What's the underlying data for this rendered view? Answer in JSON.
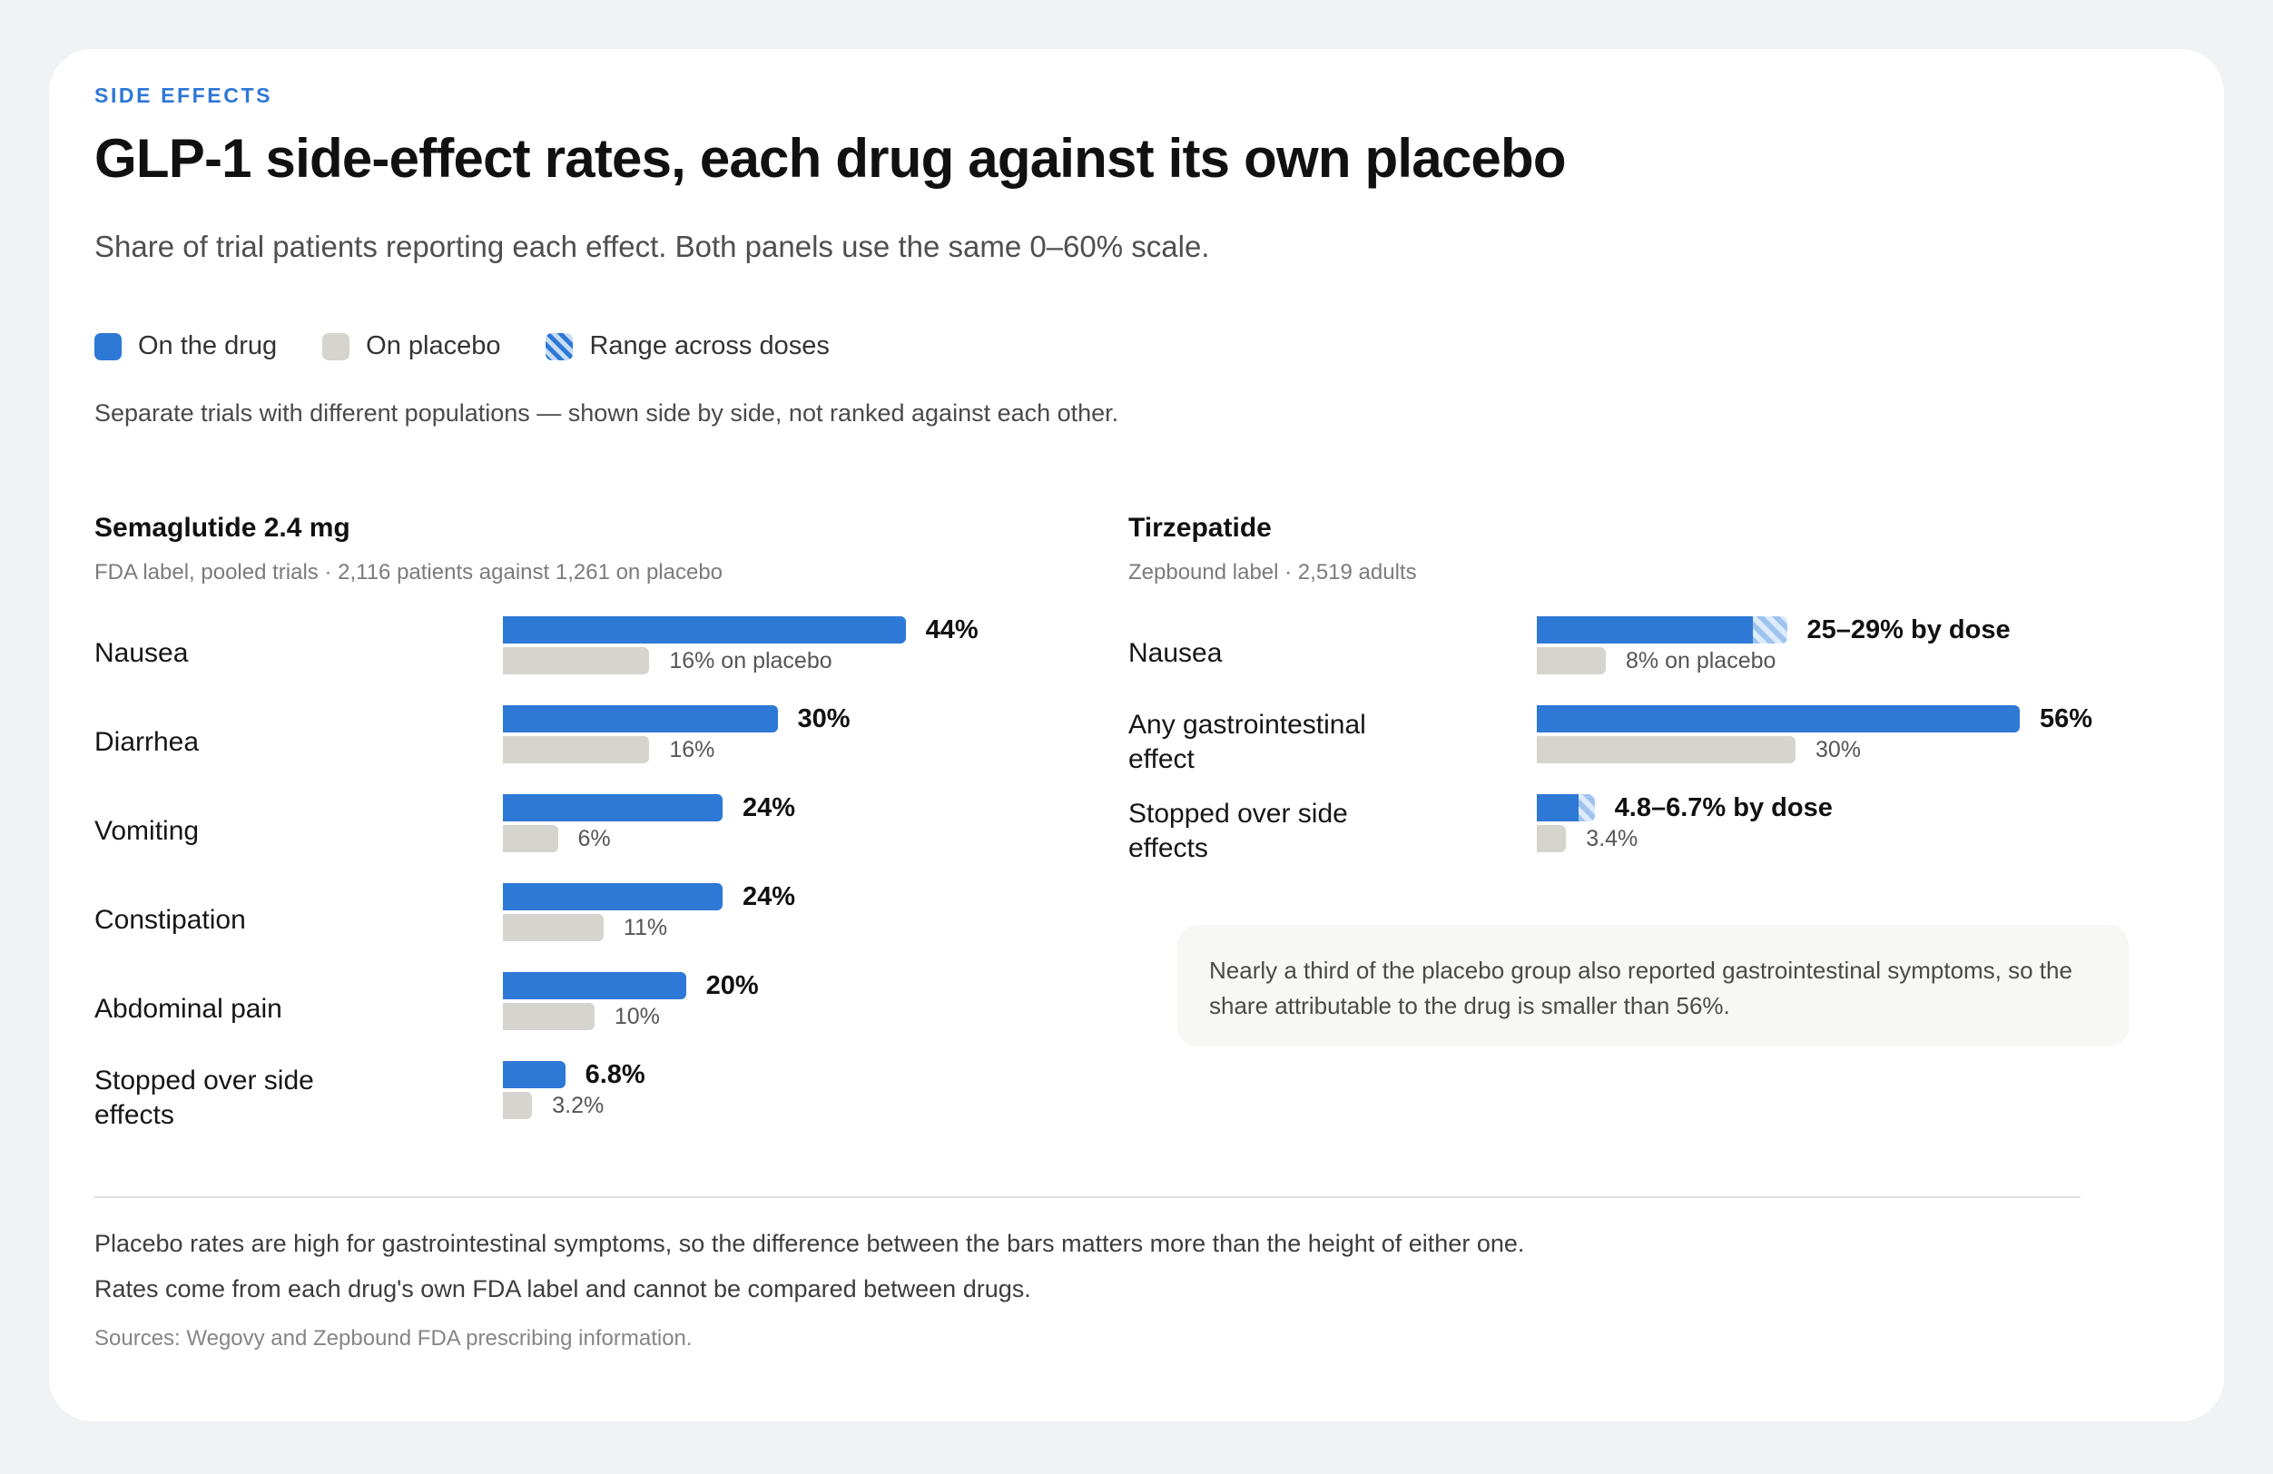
{
  "eyebrow": "SIDE EFFECTS",
  "title": "GLP-1 side-effect rates, each drug against its own placebo",
  "subtitle": "Share of trial patients reporting each effect. Both panels use the same 0–60% scale.",
  "legend": {
    "drug": "On the drug",
    "placebo": "On placebo",
    "range": "Range across doses"
  },
  "note": "Separate trials with different populations — shown side by side, not ranked against each other.",
  "colors": {
    "drug": "#2e78d6",
    "placebo": "#d6d4ce",
    "accent": "#2e78d6"
  },
  "chart_data": [
    {
      "type": "bar",
      "title": "Semaglutide 2.4 mg",
      "subtitle": "FDA label, pooled trials · 2,116 patients against 1,261 on placebo",
      "xlim": [
        0,
        60
      ],
      "unit": "%",
      "categories": [
        "Nausea",
        "Diarrhea",
        "Vomiting",
        "Constipation",
        "Abdominal pain",
        "Stopped over side effects"
      ],
      "series": [
        {
          "name": "On the drug",
          "values": [
            44,
            30,
            24,
            24,
            20,
            6.8
          ]
        },
        {
          "name": "On placebo",
          "values": [
            16,
            16,
            6,
            11,
            10,
            3.2
          ]
        }
      ],
      "drug_labels": [
        "44%",
        "30%",
        "24%",
        "24%",
        "20%",
        "6.8%"
      ],
      "placebo_labels": [
        "16% on placebo",
        "16%",
        "6%",
        "11%",
        "10%",
        "3.2%"
      ]
    },
    {
      "type": "bar",
      "title": "Tirzepatide",
      "subtitle": "Zepbound label · 2,519 adults",
      "xlim": [
        0,
        60
      ],
      "unit": "%",
      "categories": [
        "Nausea",
        "Any gastrointestinal effect",
        "Stopped over side effects"
      ],
      "series": [
        {
          "name": "On the drug",
          "values": [
            25,
            56,
            4.8
          ],
          "range_max": [
            29,
            null,
            6.7
          ]
        },
        {
          "name": "On placebo",
          "values": [
            8,
            30,
            3.4
          ]
        }
      ],
      "drug_labels": [
        "25–29% by dose",
        "56%",
        "4.8–6.7% by dose"
      ],
      "placebo_labels": [
        "8% on placebo",
        "30%",
        "3.4%"
      ]
    }
  ],
  "callout": "Nearly a third of the placebo group also reported gastrointestinal symptoms, so the share attributable to the drug is smaller than 56%.",
  "footnotes": [
    "Placebo rates are high for gastrointestinal symptoms, so the difference between the bars matters more than the height of either one.",
    "Rates come from each drug's own FDA label and cannot be compared between drugs."
  ],
  "sources": "Sources: Wegovy and Zepbound FDA prescribing information."
}
